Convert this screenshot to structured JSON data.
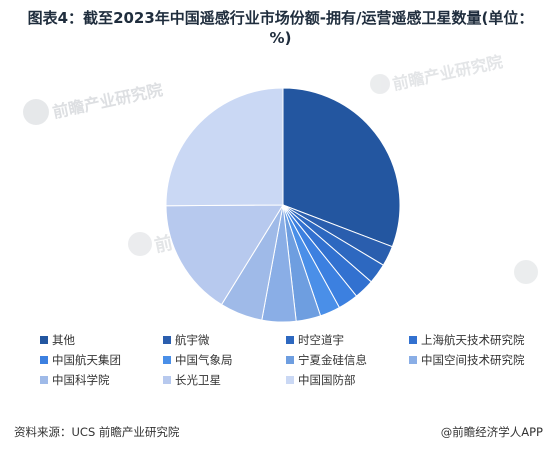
{
  "title": "图表4：截至2023年中国遥感行业市场份额-拥有/运营遥感卫星数量(单位：%)",
  "chart_data": {
    "type": "pie",
    "slices": [
      {
        "label": "其他",
        "value": 30.8,
        "color": "#2356a0"
      },
      {
        "label": "航宇微",
        "value": 2.8,
        "color": "#2a5eae"
      },
      {
        "label": "时空道宇",
        "value": 2.8,
        "color": "#2d68c0"
      },
      {
        "label": "上海航天技术研究院",
        "value": 2.8,
        "color": "#3271d0"
      },
      {
        "label": "中国航天集团",
        "value": 2.8,
        "color": "#3c80e0"
      },
      {
        "label": "中国气象局",
        "value": 2.8,
        "color": "#4a8fe8"
      },
      {
        "label": "宁夏金硅信息",
        "value": 3.4,
        "color": "#6e9ee0"
      },
      {
        "label": "中国空间技术研究院",
        "value": 4.7,
        "color": "#8aaee6"
      },
      {
        "label": "中国科学院",
        "value": 5.9,
        "color": "#9fbae8"
      },
      {
        "label": "长光卫星",
        "value": 16.1,
        "color": "#b7c9ee"
      },
      {
        "label": "中国国防部",
        "value": 25.1,
        "color": "#cad8f4"
      }
    ],
    "start_angle_deg": 0,
    "direction": "clockwise",
    "legend_position": "bottom"
  },
  "watermark": {
    "text": "前瞻产业研究院"
  },
  "source": {
    "label": "资料来源：UCS 前瞻产业研究院",
    "credit": "@前瞻经济学人APP"
  }
}
